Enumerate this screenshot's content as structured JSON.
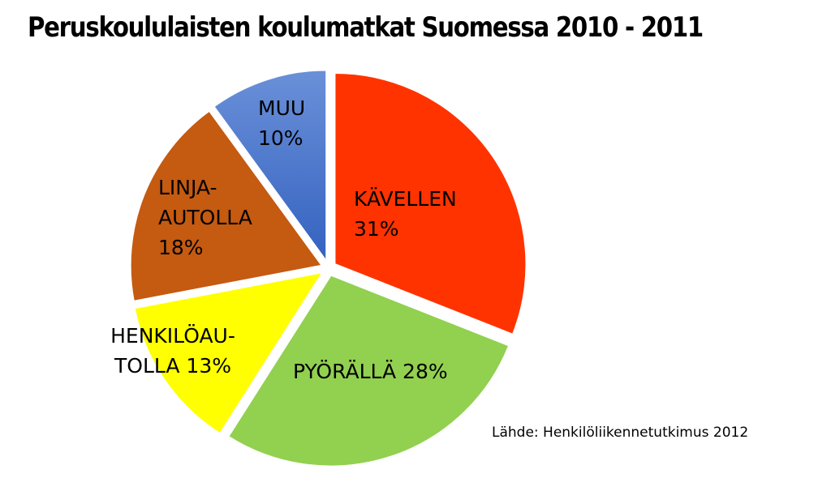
{
  "chart_data": {
    "type": "pie",
    "title": "Peruskoululaisten koulumatkat Suomessa  2010 - 2011",
    "slices": [
      {
        "label_lines": [
          "KÄVELLEN",
          "31%"
        ],
        "value": 31,
        "color": "#FF3300",
        "exploded": true
      },
      {
        "label_lines": [
          "PYÖRÄLLÄ 28%"
        ],
        "value": 28,
        "color": "#92D050",
        "exploded": true
      },
      {
        "label_lines": [
          "HENKILÖAU-",
          "TOLLA 13%"
        ],
        "value": 13,
        "color": "#FFFF00",
        "exploded": true
      },
      {
        "label_lines": [
          "LINJA-",
          "AUTOLLA",
          "18%"
        ],
        "value": 18,
        "color": "#C55A11",
        "exploded": true
      },
      {
        "label_lines": [
          "MUU",
          "10%"
        ],
        "value": 10,
        "color": "#4472C4",
        "exploded": true
      }
    ],
    "source": "Lähde: Henkilöliikennetutkimus 2012",
    "legend": "none"
  }
}
